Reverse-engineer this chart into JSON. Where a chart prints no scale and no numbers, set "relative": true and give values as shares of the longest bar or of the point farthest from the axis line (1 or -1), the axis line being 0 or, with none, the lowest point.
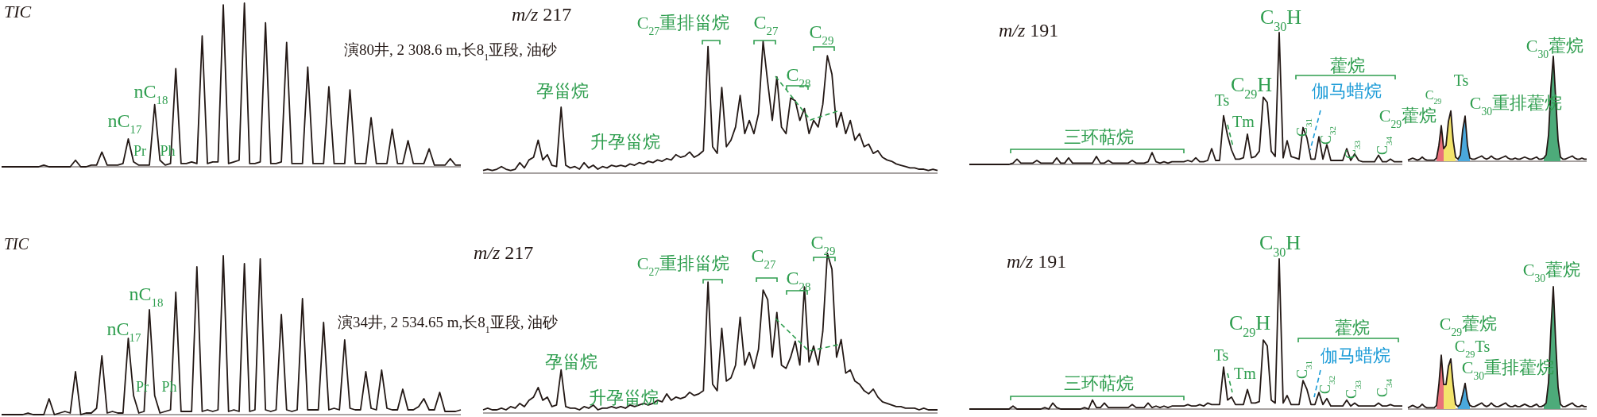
{
  "chart_data": [
    {
      "type": "line",
      "relative": true,
      "title": "TIC",
      "annotations": [
        "nC$_{18}$",
        "nC$_{17}$",
        "Pr",
        "Ph",
        "演80井, 2 308.6 m,长8$_{1}$亚段, 油砂"
      ],
      "categories": [
        null,
        null,
        null,
        null,
        null,
        null,
        null,
        null,
        null,
        null,
        null,
        null,
        null,
        null,
        null,
        null,
        null,
        null,
        null,
        null,
        null,
        null,
        null,
        null,
        null,
        null,
        null,
        null,
        null,
        null,
        null,
        null,
        null,
        null,
        null,
        null,
        null,
        null,
        null,
        null,
        null,
        null,
        null,
        null,
        null,
        null,
        null,
        null,
        null,
        null,
        null,
        null,
        null,
        null,
        null,
        null,
        null,
        null,
        null,
        null,
        null,
        null,
        null,
        null,
        null,
        null,
        null,
        null,
        null,
        null,
        null,
        null,
        null,
        null,
        null,
        null,
        null,
        null,
        null,
        null,
        null,
        null,
        null,
        null,
        null,
        null,
        null,
        null
      ],
      "series": [
        {
          "color": "#231815",
          "values": [
            0,
            0,
            0,
            0,
            0,
            0,
            0,
            0,
            0.01,
            0,
            0,
            0,
            0,
            0,
            0.04,
            0,
            0,
            0.01,
            0.01,
            0.09,
            0.01,
            0.01,
            0.01,
            0.02,
            0.17,
            0.03,
            0.01,
            0.01,
            0.01,
            0.38,
            0.04,
            0.01,
            0.02,
            0.6,
            0.02,
            0.02,
            0.03,
            0.02,
            0.8,
            0.02,
            0.03,
            0.03,
            0.99,
            0.02,
            0.03,
            0.04,
            1,
            0.02,
            0.02,
            0.03,
            0.88,
            0.02,
            0.02,
            0.03,
            0.76,
            0.02,
            0.02,
            0.02,
            0.61,
            0.02,
            0.02,
            0.02,
            0.49,
            0.02,
            0.02,
            0.02,
            0.47,
            0.02,
            0.02,
            0.02,
            0.3,
            0.02,
            0.02,
            0.02,
            0.23,
            0.02,
            0.02,
            0.16,
            0.02,
            0.02,
            0.02,
            0.11,
            0.01,
            0.01,
            0.01,
            0.05,
            0.01,
            0.01
          ]
        }
      ]
    },
    {
      "type": "line",
      "relative": true,
      "title": "m/z 217",
      "annotations": [
        "C$_{27}$重排甾烷",
        "C$_{27}$",
        "C$_{28}$",
        "C$_{29}$",
        "孕甾烷",
        "升孕甾烷"
      ],
      "categories": [
        null,
        null,
        null,
        null,
        null,
        null,
        null,
        null,
        null,
        null,
        null,
        null,
        null,
        null,
        null,
        null,
        null,
        null,
        null,
        null,
        null,
        null,
        null,
        null,
        null,
        null,
        null,
        null,
        null,
        null,
        null,
        null,
        null,
        null,
        null,
        null,
        null,
        null,
        null,
        null,
        null,
        null,
        null,
        null,
        null,
        null,
        null,
        null,
        null,
        null,
        null,
        null,
        null,
        null,
        null,
        null,
        null,
        null,
        null,
        null,
        null,
        null,
        null,
        null,
        null,
        null,
        null,
        null,
        null,
        null,
        null,
        null,
        null,
        null,
        null,
        null,
        null,
        null,
        null,
        null,
        null,
        null,
        null,
        null,
        null,
        null,
        null,
        null,
        null,
        null,
        null,
        null,
        null,
        null,
        null,
        null,
        null,
        null,
        null,
        null
      ],
      "series": [
        {
          "color": "#231815",
          "values": [
            0.02,
            0.03,
            0.02,
            0.03,
            0.05,
            0.03,
            0.02,
            0.03,
            0.08,
            0.04,
            0.1,
            0.12,
            0.25,
            0.1,
            0.14,
            0.06,
            0.05,
            0.5,
            0.06,
            0.04,
            0.05,
            0.03,
            0.08,
            0.04,
            0.06,
            0.03,
            0.05,
            0.04,
            0.06,
            0.05,
            0.06,
            0.05,
            0.07,
            0.06,
            0.08,
            0.07,
            0.09,
            0.08,
            0.1,
            0.09,
            0.11,
            0.1,
            0.14,
            0.12,
            0.13,
            0.16,
            0.12,
            0.14,
            0.17,
            0.96,
            0.2,
            0.15,
            0.65,
            0.2,
            0.25,
            0.35,
            0.59,
            0.3,
            0.4,
            0.3,
            0.45,
            1,
            0.69,
            0.4,
            0.73,
            0.35,
            0.3,
            0.57,
            0.55,
            0.4,
            0.49,
            0.3,
            0.4,
            0.35,
            0.52,
            0.89,
            0.75,
            0.35,
            0.46,
            0.3,
            0.4,
            0.25,
            0.3,
            0.2,
            0.22,
            0.15,
            0.17,
            0.12,
            0.1,
            0.09,
            0.07,
            0.06,
            0.05,
            0.04,
            0.04,
            0.03,
            0.03,
            0.02,
            0.03,
            0.02
          ]
        }
      ]
    },
    {
      "type": "line",
      "relative": true,
      "title": "m/z 191",
      "annotations": [
        "C$_{30}$H",
        "C$_{29}$H",
        "Ts",
        "Tm",
        "藿烷",
        "伽马蜡烷",
        "C$_{31}$",
        "C$_{32}$",
        "C$_{33}$",
        "C$_{34}$",
        "三环萜烷"
      ],
      "categories": [
        null,
        null,
        null,
        null,
        null,
        null,
        null,
        null,
        null,
        null,
        null,
        null,
        null,
        null,
        null,
        null,
        null,
        null,
        null,
        null,
        null,
        null,
        null,
        null,
        null,
        null,
        null,
        null,
        null,
        null,
        null,
        null,
        null,
        null,
        null,
        null,
        null,
        null,
        null,
        null,
        null,
        null,
        null,
        null,
        null,
        null,
        null,
        null,
        null,
        null,
        null,
        null,
        null,
        null,
        null,
        null,
        null,
        null,
        null,
        null,
        null,
        null,
        null,
        null,
        null,
        null,
        null,
        null,
        null,
        null,
        null,
        null,
        null,
        null,
        null,
        null,
        null,
        null,
        null,
        null,
        null,
        null,
        null,
        null,
        null,
        null,
        null,
        null,
        null,
        null,
        null,
        null,
        null,
        null,
        null,
        null,
        null,
        null,
        null,
        null,
        null,
        null,
        null,
        null,
        null,
        null,
        null,
        null,
        null,
        null
      ],
      "series": [
        {
          "color": "#231815",
          "values": [
            0,
            0,
            0,
            0,
            0,
            0,
            0,
            0,
            0,
            0,
            0,
            0.01,
            0.04,
            0.01,
            0.01,
            0.01,
            0.01,
            0.03,
            0.01,
            0.01,
            0.01,
            0.01,
            0.05,
            0.01,
            0.01,
            0.05,
            0.01,
            0.01,
            0.01,
            0.01,
            0.01,
            0.01,
            0.06,
            0.01,
            0.01,
            0.03,
            0.01,
            0.01,
            0.01,
            0.01,
            0.01,
            0.03,
            0.01,
            0.01,
            0.01,
            0.02,
            0.09,
            0.02,
            0.01,
            0.02,
            0.01,
            0.02,
            0.02,
            0.02,
            0.02,
            0.03,
            0.02,
            0.05,
            0.02,
            0.02,
            0.03,
            0.12,
            0.03,
            0.03,
            0.37,
            0.22,
            0.11,
            0.04,
            0.04,
            0.05,
            0.23,
            0.05,
            0.06,
            0.1,
            0.51,
            0.47,
            0.1,
            0.06,
            1,
            0.05,
            0.18,
            0.06,
            0.05,
            0.04,
            0.28,
            0.2,
            0.04,
            0.04,
            0.21,
            0.04,
            0.15,
            0.03,
            0.03,
            0.03,
            0.03,
            0.12,
            0.03,
            0.08,
            0.03,
            0.02,
            0.02,
            0.02,
            0.02,
            0.07,
            0.02,
            0.02,
            0.04,
            0.02,
            0.02,
            0.02
          ]
        }
      ]
    },
    {
      "type": "line",
      "relative": true,
      "annotations": [
        "C$_{29}$藿烷",
        "C$_{29}$",
        "Ts",
        "C$_{30}$重排藿烷",
        "C$_{30}$藿烷"
      ],
      "categories": [
        null,
        null,
        null,
        null,
        null,
        null,
        null,
        null,
        null,
        null,
        null,
        null,
        null,
        null,
        null,
        null,
        null,
        null,
        null,
        null,
        null,
        null,
        null,
        null,
        null,
        null,
        null,
        null,
        null,
        null,
        null,
        null,
        null,
        null,
        null,
        null,
        null,
        null,
        null,
        null,
        null,
        null,
        null,
        null,
        null,
        null,
        null,
        null,
        null,
        null,
        null,
        null,
        null,
        null,
        null,
        null,
        null,
        null,
        null,
        null,
        null,
        null,
        null,
        null,
        null,
        null,
        null,
        null,
        null,
        null,
        null,
        null,
        null,
        null,
        null,
        null
      ],
      "series": [
        {
          "color": "#231815",
          "values": [
            0.01,
            0.02,
            0.03,
            0.02,
            0.01,
            0.02,
            0.04,
            0.02,
            0.01,
            0.01,
            0.01,
            0.01,
            0.03,
            0.15,
            0.34,
            0.12,
            0.15,
            0.38,
            0.48,
            0.2,
            0.04,
            0.02,
            0.06,
            0.3,
            0.43,
            0.15,
            0.03,
            0.02,
            0.02,
            0.03,
            0.04,
            0.05,
            0.03,
            0.02,
            0.03,
            0.05,
            0.03,
            0.02,
            0.02,
            0.03,
            0.04,
            0.05,
            0.03,
            0.02,
            0.02,
            0.03,
            0.02,
            0.02,
            0.03,
            0.04,
            0.03,
            0.02,
            0.02,
            0.03,
            0.04,
            0.02,
            0.02,
            0.03,
            0.06,
            0.25,
            0.7,
            1,
            0.6,
            0.2,
            0.04,
            0.02,
            0.02,
            0.03,
            0.04,
            0.05,
            0.03,
            0.02,
            0.02,
            0.03,
            0.02,
            0.02
          ]
        },
        {
          "type": "area",
          "color": "#e8707a",
          "values": [
            null,
            null,
            null,
            null,
            null,
            null,
            null,
            null,
            null,
            null,
            null,
            null,
            0.03,
            0.15,
            0.34,
            0.12,
            null,
            null,
            null,
            null,
            null,
            null,
            null,
            null,
            null,
            null,
            null,
            null,
            null,
            null,
            null,
            null,
            null,
            null,
            null,
            null,
            null,
            null,
            null,
            null,
            null,
            null,
            null,
            null,
            null,
            null,
            null,
            null,
            null,
            null,
            null,
            null,
            null,
            null,
            null,
            null,
            null,
            null,
            null,
            null,
            null,
            null,
            null,
            null,
            null,
            null,
            null,
            null,
            null,
            null,
            null,
            null,
            null,
            null,
            null,
            null
          ]
        },
        {
          "type": "area",
          "color": "#f3e46c",
          "values": [
            null,
            null,
            null,
            null,
            null,
            null,
            null,
            null,
            null,
            null,
            null,
            null,
            null,
            null,
            null,
            0.12,
            0.15,
            0.38,
            0.48,
            0.2,
            0.04,
            null,
            null,
            null,
            null,
            null,
            null,
            null,
            null,
            null,
            null,
            null,
            null,
            null,
            null,
            null,
            null,
            null,
            null,
            null,
            null,
            null,
            null,
            null,
            null,
            null,
            null,
            null,
            null,
            null,
            null,
            null,
            null,
            null,
            null,
            null,
            null,
            null,
            null,
            null,
            null,
            null,
            null,
            null,
            null,
            null,
            null,
            null,
            null,
            null,
            null,
            null,
            null,
            null,
            null,
            null
          ]
        },
        {
          "type": "area",
          "color": "#4aa8dc",
          "values": [
            null,
            null,
            null,
            null,
            null,
            null,
            null,
            null,
            null,
            null,
            null,
            null,
            null,
            null,
            null,
            null,
            null,
            null,
            null,
            null,
            null,
            0.02,
            0.06,
            0.3,
            0.43,
            0.15,
            0.03,
            null,
            null,
            null,
            null,
            null,
            null,
            null,
            null,
            null,
            null,
            null,
            null,
            null,
            null,
            null,
            null,
            null,
            null,
            null,
            null,
            null,
            null,
            null,
            null,
            null,
            null,
            null,
            null,
            null,
            null,
            null,
            null,
            null,
            null,
            null,
            null,
            null,
            null,
            null,
            null,
            null,
            null,
            null,
            null,
            null,
            null,
            null,
            null,
            null
          ]
        },
        {
          "type": "area",
          "color": "#4dab7a",
          "values": [
            null,
            null,
            null,
            null,
            null,
            null,
            null,
            null,
            null,
            null,
            null,
            null,
            null,
            null,
            null,
            null,
            null,
            null,
            null,
            null,
            null,
            null,
            null,
            null,
            null,
            null,
            null,
            null,
            null,
            null,
            null,
            null,
            null,
            null,
            null,
            null,
            null,
            null,
            null,
            null,
            null,
            null,
            null,
            null,
            null,
            null,
            null,
            null,
            null,
            null,
            null,
            null,
            null,
            null,
            null,
            null,
            null,
            0.03,
            0.06,
            0.25,
            0.7,
            1,
            0.6,
            0.2,
            0.04,
            null,
            null,
            null,
            null,
            null,
            null,
            null,
            null,
            null,
            null,
            null
          ]
        }
      ]
    },
    {
      "type": "line",
      "relative": true,
      "title": "TIC",
      "annotations": [
        "nC$_{18}$",
        "nC$_{17}$",
        "Pr",
        "Ph",
        "演34井, 2 534.65 m,长8$_{1}$亚段, 油砂"
      ],
      "categories": [
        null,
        null,
        null,
        null,
        null,
        null,
        null,
        null,
        null,
        null,
        null,
        null,
        null,
        null,
        null,
        null,
        null,
        null,
        null,
        null,
        null,
        null,
        null,
        null,
        null,
        null,
        null,
        null,
        null,
        null,
        null,
        null,
        null,
        null,
        null,
        null,
        null,
        null,
        null,
        null,
        null,
        null,
        null,
        null,
        null,
        null,
        null,
        null,
        null,
        null,
        null,
        null,
        null,
        null,
        null,
        null,
        null,
        null,
        null,
        null,
        null,
        null,
        null,
        null,
        null,
        null,
        null,
        null,
        null,
        null,
        null,
        null,
        null,
        null,
        null,
        null,
        null,
        null,
        null,
        null,
        null,
        null,
        null,
        null,
        null,
        null,
        null,
        null
      ],
      "series": [
        {
          "color": "#231815",
          "values": [
            0,
            0,
            0,
            0,
            0,
            0.01,
            0,
            0,
            0,
            0.1,
            0,
            0.01,
            0.02,
            0.01,
            0.27,
            0,
            0.01,
            0.01,
            0.04,
            0.37,
            0.01,
            0.02,
            0.01,
            0.01,
            0.48,
            0.12,
            0.01,
            0.02,
            0.66,
            0.12,
            0.01,
            0.02,
            0.03,
            0.77,
            0.02,
            0.02,
            0.02,
            0.93,
            0.02,
            0.03,
            0.02,
            0.03,
            1,
            0.02,
            0.03,
            0.02,
            0.95,
            0.02,
            0.03,
            0.98,
            0.03,
            0.02,
            0.03,
            0.63,
            0.03,
            0.02,
            0.03,
            0.73,
            0.03,
            0.03,
            0.03,
            0.58,
            0.03,
            0.04,
            0.03,
            0.47,
            0.04,
            0.03,
            0.03,
            0.27,
            0.04,
            0.03,
            0.28,
            0.04,
            0.03,
            0.03,
            0.16,
            0.03,
            0.03,
            0.05,
            0.1,
            0.03,
            0.03,
            0.14,
            0.02,
            0.02,
            0.02,
            0.03
          ]
        }
      ]
    },
    {
      "type": "line",
      "relative": true,
      "title": "m/z 217",
      "annotations": [
        "C$_{27}$重排甾烷",
        "C$_{27}$",
        "C$_{28}$",
        "C$_{29}$",
        "孕甾烷",
        "升孕甾烷"
      ],
      "categories": [
        null,
        null,
        null,
        null,
        null,
        null,
        null,
        null,
        null,
        null,
        null,
        null,
        null,
        null,
        null,
        null,
        null,
        null,
        null,
        null,
        null,
        null,
        null,
        null,
        null,
        null,
        null,
        null,
        null,
        null,
        null,
        null,
        null,
        null,
        null,
        null,
        null,
        null,
        null,
        null,
        null,
        null,
        null,
        null,
        null,
        null,
        null,
        null,
        null,
        null,
        null,
        null,
        null,
        null,
        null,
        null,
        null,
        null,
        null,
        null,
        null,
        null,
        null,
        null,
        null,
        null,
        null,
        null,
        null,
        null,
        null,
        null,
        null,
        null,
        null,
        null,
        null,
        null,
        null,
        null,
        null,
        null,
        null,
        null,
        null,
        null,
        null,
        null,
        null,
        null,
        null,
        null,
        null,
        null,
        null,
        null,
        null,
        null,
        null,
        null
      ],
      "series": [
        {
          "color": "#231815",
          "values": [
            0.02,
            0.03,
            0.02,
            0.02,
            0.03,
            0.02,
            0.04,
            0.03,
            0.06,
            0.04,
            0.08,
            0.1,
            0.16,
            0.08,
            0.1,
            0.04,
            0.05,
            0.27,
            0.04,
            0.03,
            0.03,
            0.02,
            0.04,
            0.03,
            0.05,
            0.02,
            0.03,
            0.03,
            0.04,
            0.03,
            0.04,
            0.03,
            0.05,
            0.04,
            0.05,
            0.06,
            0.05,
            0.06,
            0.08,
            0.07,
            0.12,
            0.08,
            0.1,
            0.09,
            0.1,
            0.13,
            0.11,
            0.12,
            0.14,
            0.82,
            0.18,
            0.14,
            0.53,
            0.2,
            0.22,
            0.3,
            0.6,
            0.3,
            0.38,
            0.28,
            0.4,
            0.77,
            0.71,
            0.35,
            0.63,
            0.3,
            0.28,
            0.35,
            0.45,
            0.3,
            0.79,
            0.32,
            0.42,
            0.3,
            0.51,
            1,
            0.9,
            0.35,
            0.46,
            0.25,
            0.27,
            0.2,
            0.18,
            0.14,
            0.12,
            0.15,
            0.1,
            0.07,
            0.06,
            0.05,
            0.04,
            0.04,
            0.03,
            0.03,
            0.03,
            0.02,
            0.03,
            0.02,
            0.02,
            0.02
          ]
        }
      ]
    },
    {
      "type": "line",
      "relative": true,
      "title": "m/z 191",
      "annotations": [
        "C$_{30}$H",
        "C$_{29}$H",
        "Ts",
        "Tm",
        "藿烷",
        "伽马蜡烷",
        "C$_{31}$",
        "C$_{32}$",
        "C$_{33}$",
        "C$_{34}$",
        "三环萜烷"
      ],
      "categories": [
        null,
        null,
        null,
        null,
        null,
        null,
        null,
        null,
        null,
        null,
        null,
        null,
        null,
        null,
        null,
        null,
        null,
        null,
        null,
        null,
        null,
        null,
        null,
        null,
        null,
        null,
        null,
        null,
        null,
        null,
        null,
        null,
        null,
        null,
        null,
        null,
        null,
        null,
        null,
        null,
        null,
        null,
        null,
        null,
        null,
        null,
        null,
        null,
        null,
        null,
        null,
        null,
        null,
        null,
        null,
        null,
        null,
        null,
        null,
        null,
        null,
        null,
        null,
        null,
        null,
        null,
        null,
        null,
        null,
        null,
        null,
        null,
        null,
        null,
        null,
        null,
        null,
        null,
        null,
        null,
        null,
        null,
        null,
        null,
        null,
        null,
        null,
        null,
        null,
        null,
        null,
        null,
        null,
        null,
        null,
        null,
        null,
        null,
        null,
        null,
        null,
        null,
        null,
        null,
        null,
        null,
        null,
        null,
        null,
        null
      ],
      "series": [
        {
          "color": "#231815",
          "values": [
            0,
            0,
            0,
            0,
            0,
            0,
            0,
            0,
            0,
            0,
            0,
            0.02,
            0,
            0,
            0,
            0,
            0,
            0,
            0,
            0.01,
            0,
            0.04,
            0.01,
            0,
            0,
            0,
            0,
            0,
            0,
            0.01,
            0,
            0.06,
            0.01,
            0.01,
            0.04,
            0.01,
            0.01,
            0.01,
            0.01,
            0.01,
            0.01,
            0.03,
            0.01,
            0.01,
            0.01,
            0.04,
            0.01,
            0.02,
            0.01,
            0.02,
            0.01,
            0.02,
            0.02,
            0.02,
            0.02,
            0.03,
            0.02,
            0.02,
            0.03,
            0.02,
            0.04,
            0.03,
            0.03,
            0.03,
            0.28,
            0.06,
            0.08,
            0.03,
            0.03,
            0.03,
            0.13,
            0.04,
            0.04,
            0.05,
            0.46,
            0.42,
            0.06,
            0.04,
            1,
            0.04,
            0.09,
            0.03,
            0.03,
            0.03,
            0.19,
            0.13,
            0.03,
            0.03,
            0.11,
            0.03,
            0.07,
            0.02,
            0.02,
            0.02,
            0.02,
            0.06,
            0.02,
            0.04,
            0.02,
            0.02,
            0.02,
            0.02,
            0.02,
            0.04,
            0.02,
            0.02,
            0.03,
            0.02,
            0.02,
            0.02
          ]
        }
      ]
    },
    {
      "type": "line",
      "relative": true,
      "annotations": [
        "C$_{29}$藿烷",
        "C$_{29}$Ts",
        "C$_{30}$重排藿烷",
        "C$_{30}$藿烷"
      ],
      "categories": [
        null,
        null,
        null,
        null,
        null,
        null,
        null,
        null,
        null,
        null,
        null,
        null,
        null,
        null,
        null,
        null,
        null,
        null,
        null,
        null,
        null,
        null,
        null,
        null,
        null,
        null,
        null,
        null,
        null,
        null,
        null,
        null,
        null,
        null,
        null,
        null,
        null,
        null,
        null,
        null,
        null,
        null,
        null,
        null,
        null,
        null,
        null,
        null,
        null,
        null,
        null,
        null,
        null,
        null,
        null,
        null,
        null,
        null,
        null,
        null,
        null,
        null,
        null,
        null,
        null,
        null,
        null,
        null,
        null,
        null,
        null,
        null,
        null,
        null,
        null,
        null
      ],
      "series": [
        {
          "color": "#231815",
          "values": [
            0.01,
            0.02,
            0.03,
            0.02,
            0.01,
            0.02,
            0.04,
            0.02,
            0.01,
            0.01,
            0.01,
            0.01,
            0.03,
            0.2,
            0.44,
            0.2,
            0.2,
            0.35,
            0.41,
            0.2,
            0.04,
            0.02,
            0.04,
            0.12,
            0.21,
            0.08,
            0.03,
            0.02,
            0.02,
            0.03,
            0.04,
            0.05,
            0.03,
            0.02,
            0.03,
            0.05,
            0.03,
            0.02,
            0.02,
            0.03,
            0.04,
            0.05,
            0.03,
            0.02,
            0.02,
            0.03,
            0.02,
            0.02,
            0.03,
            0.04,
            0.03,
            0.02,
            0.02,
            0.03,
            0.04,
            0.02,
            0.02,
            0.03,
            0.05,
            0.22,
            0.65,
            1,
            0.55,
            0.18,
            0.04,
            0.02,
            0.02,
            0.03,
            0.04,
            0.05,
            0.03,
            0.02,
            0.02,
            0.03,
            0.02,
            0.02
          ]
        },
        {
          "type": "area",
          "color": "#e8707a",
          "values": [
            null,
            null,
            null,
            null,
            null,
            null,
            null,
            null,
            null,
            null,
            null,
            null,
            0.03,
            0.2,
            0.44,
            0.2,
            null,
            null,
            null,
            null,
            null,
            null,
            null,
            null,
            null,
            null,
            null,
            null,
            null,
            null,
            null,
            null,
            null,
            null,
            null,
            null,
            null,
            null,
            null,
            null,
            null,
            null,
            null,
            null,
            null,
            null,
            null,
            null,
            null,
            null,
            null,
            null,
            null,
            null,
            null,
            null,
            null,
            null,
            null,
            null,
            null,
            null,
            null,
            null,
            null,
            null,
            null,
            null,
            null,
            null,
            null,
            null,
            null,
            null,
            null,
            null
          ]
        },
        {
          "type": "area",
          "color": "#f3e46c",
          "values": [
            null,
            null,
            null,
            null,
            null,
            null,
            null,
            null,
            null,
            null,
            null,
            null,
            null,
            null,
            null,
            0.2,
            0.2,
            0.35,
            0.41,
            0.2,
            0.04,
            null,
            null,
            null,
            null,
            null,
            null,
            null,
            null,
            null,
            null,
            null,
            null,
            null,
            null,
            null,
            null,
            null,
            null,
            null,
            null,
            null,
            null,
            null,
            null,
            null,
            null,
            null,
            null,
            null,
            null,
            null,
            null,
            null,
            null,
            null,
            null,
            null,
            null,
            null,
            null,
            null,
            null,
            null,
            null,
            null,
            null,
            null,
            null,
            null,
            null,
            null,
            null,
            null,
            null,
            null
          ]
        },
        {
          "type": "area",
          "color": "#4aa8dc",
          "values": [
            null,
            null,
            null,
            null,
            null,
            null,
            null,
            null,
            null,
            null,
            null,
            null,
            null,
            null,
            null,
            null,
            null,
            null,
            null,
            null,
            null,
            0.02,
            0.04,
            0.12,
            0.21,
            0.08,
            0.03,
            null,
            null,
            null,
            null,
            null,
            null,
            null,
            null,
            null,
            null,
            null,
            null,
            null,
            null,
            null,
            null,
            null,
            null,
            null,
            null,
            null,
            null,
            null,
            null,
            null,
            null,
            null,
            null,
            null,
            null,
            null,
            null,
            null,
            null,
            null,
            null,
            null,
            null,
            null,
            null,
            null,
            null,
            null,
            null,
            null,
            null,
            null,
            null,
            null
          ]
        },
        {
          "type": "area",
          "color": "#4dab7a",
          "values": [
            null,
            null,
            null,
            null,
            null,
            null,
            null,
            null,
            null,
            null,
            null,
            null,
            null,
            null,
            null,
            null,
            null,
            null,
            null,
            null,
            null,
            null,
            null,
            null,
            null,
            null,
            null,
            null,
            null,
            null,
            null,
            null,
            null,
            null,
            null,
            null,
            null,
            null,
            null,
            null,
            null,
            null,
            null,
            null,
            null,
            null,
            null,
            null,
            null,
            null,
            null,
            null,
            null,
            null,
            null,
            null,
            null,
            0.03,
            0.05,
            0.22,
            0.65,
            1,
            0.55,
            0.18,
            0.04,
            null,
            null,
            null,
            null,
            null,
            null,
            null,
            null,
            null,
            null,
            null
          ]
        }
      ]
    }
  ]
}
